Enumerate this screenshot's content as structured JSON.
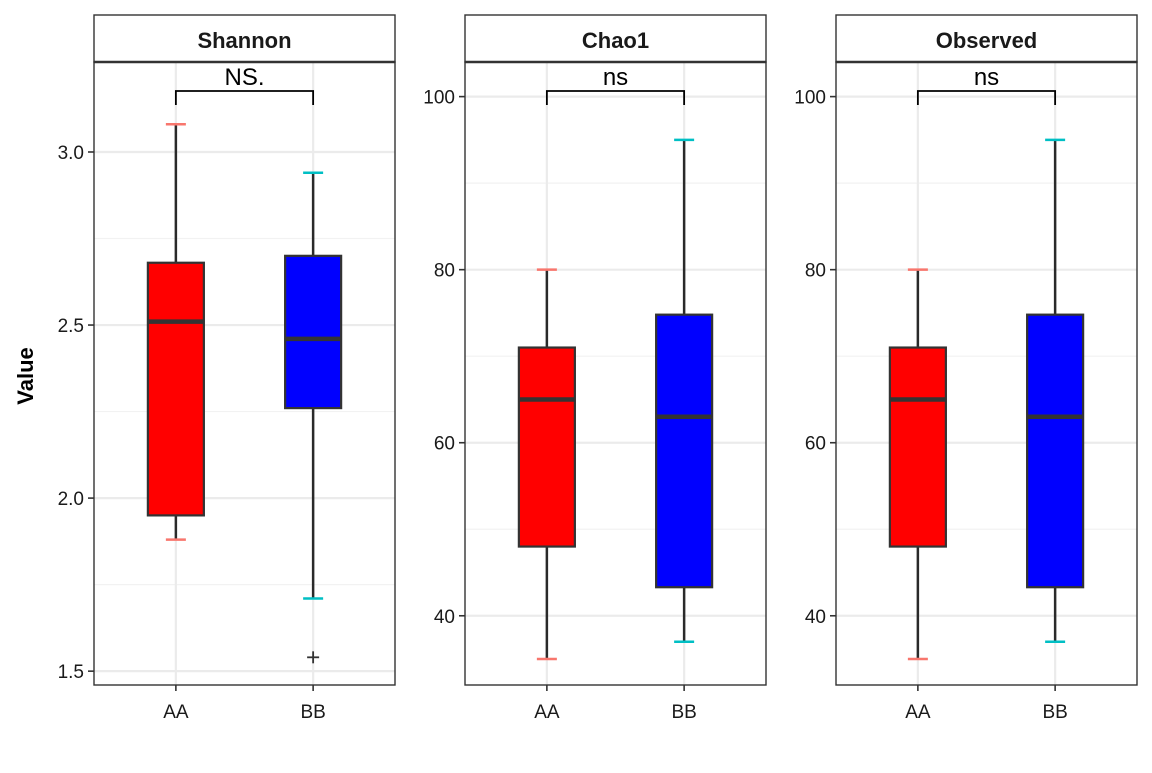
{
  "chart_data": {
    "type": "boxplot",
    "ylabel": "Value",
    "xlabel": "",
    "legend": "none",
    "grid": true,
    "categories": [
      "AA",
      "BB"
    ],
    "colors": {
      "AA_fill": "#ff0000",
      "BB_fill": "#0000ff",
      "AA_whisker_cap": "#f8766d",
      "BB_whisker_cap": "#00bfc4",
      "box_line": "#333333",
      "grid": "#ebebeb"
    },
    "panels": [
      {
        "title": "Shannon",
        "significance": "NS.",
        "ylim": [
          1.46,
          3.26
        ],
        "yticks": [
          1.5,
          2.0,
          2.5,
          3.0
        ],
        "ytick_labels": [
          "1.5",
          "2.0",
          "2.5",
          "3.0"
        ],
        "boxes": [
          {
            "group": "AA",
            "min": 1.88,
            "q1": 1.95,
            "median": 2.51,
            "q3": 2.68,
            "max": 3.08,
            "outliers": []
          },
          {
            "group": "BB",
            "min": 1.71,
            "q1": 2.26,
            "median": 2.46,
            "q3": 2.7,
            "max": 2.94,
            "outliers": [
              1.54
            ]
          }
        ]
      },
      {
        "title": "Chao1",
        "significance": "ns",
        "ylim": [
          32,
          104
        ],
        "yticks": [
          40,
          60,
          80,
          100
        ],
        "ytick_labels": [
          "40",
          "60",
          "80",
          "100"
        ],
        "boxes": [
          {
            "group": "AA",
            "min": 35,
            "q1": 48,
            "median": 65,
            "q3": 71,
            "max": 80,
            "outliers": []
          },
          {
            "group": "BB",
            "min": 37,
            "q1": 43.3,
            "median": 63,
            "q3": 74.8,
            "max": 95,
            "outliers": []
          }
        ]
      },
      {
        "title": "Observed",
        "significance": "ns",
        "ylim": [
          32,
          104
        ],
        "yticks": [
          40,
          60,
          80,
          100
        ],
        "ytick_labels": [
          "40",
          "60",
          "80",
          "100"
        ],
        "boxes": [
          {
            "group": "AA",
            "min": 35,
            "q1": 48,
            "median": 65,
            "q3": 71,
            "max": 80,
            "outliers": []
          },
          {
            "group": "BB",
            "min": 37,
            "q1": 43.3,
            "median": 63,
            "q3": 74.8,
            "max": 95,
            "outliers": []
          }
        ]
      }
    ]
  }
}
